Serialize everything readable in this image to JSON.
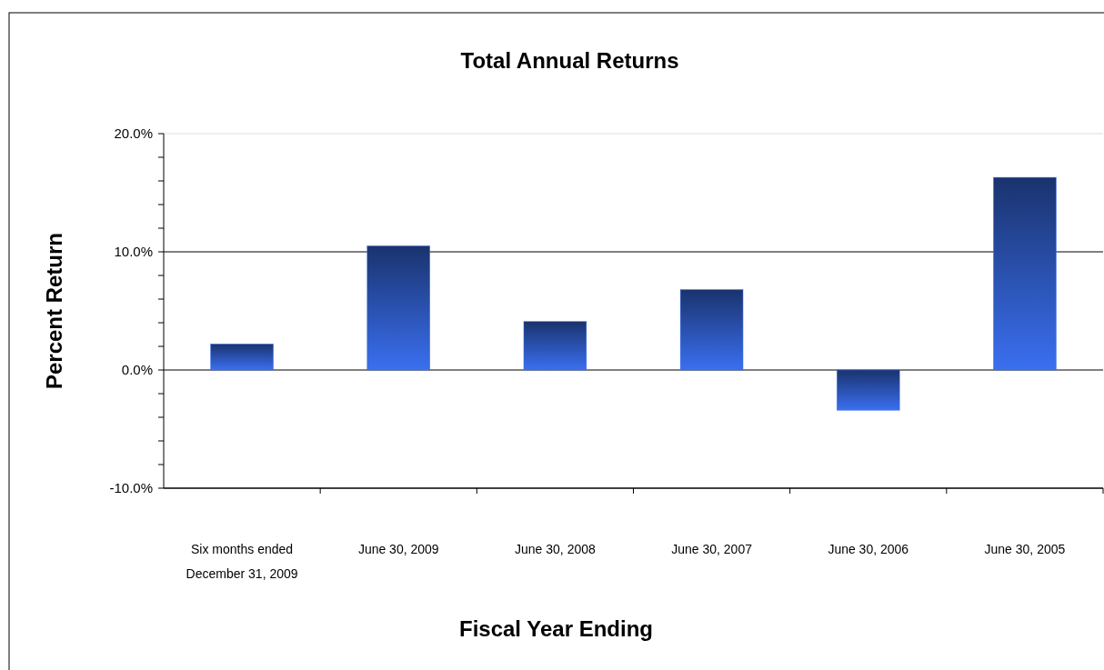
{
  "chart_data": {
    "type": "bar",
    "title": "Total Annual Returns",
    "xlabel": "Fiscal Year Ending",
    "ylabel": "Percent Return",
    "categories": [
      "Six months ended December 31, 2009",
      "June 30, 2009",
      "June 30, 2008",
      "June 30, 2007",
      "June 30, 2006",
      "June 30, 2005"
    ],
    "values": [
      2.2,
      10.5,
      4.1,
      6.8,
      -3.4,
      16.3
    ],
    "color": "#3a6ff0",
    "ylim": [
      -10,
      20
    ],
    "yticks": [
      {
        "value": -10,
        "label": "-10.0%"
      },
      {
        "value": -8,
        "label": null
      },
      {
        "value": -6,
        "label": null
      },
      {
        "value": -4,
        "label": null
      },
      {
        "value": -2,
        "label": null
      },
      {
        "value": 0,
        "label": "0.0%"
      },
      {
        "value": 2,
        "label": null
      },
      {
        "value": 4,
        "label": null
      },
      {
        "value": 6,
        "label": null
      },
      {
        "value": 8,
        "label": null
      },
      {
        "value": 10,
        "label": "10.0%"
      },
      {
        "value": 12,
        "label": null
      },
      {
        "value": 14,
        "label": null
      },
      {
        "value": 16,
        "label": null
      },
      {
        "value": 18,
        "label": null
      },
      {
        "value": 20,
        "label": "20.0%"
      }
    ],
    "grid": "y"
  }
}
